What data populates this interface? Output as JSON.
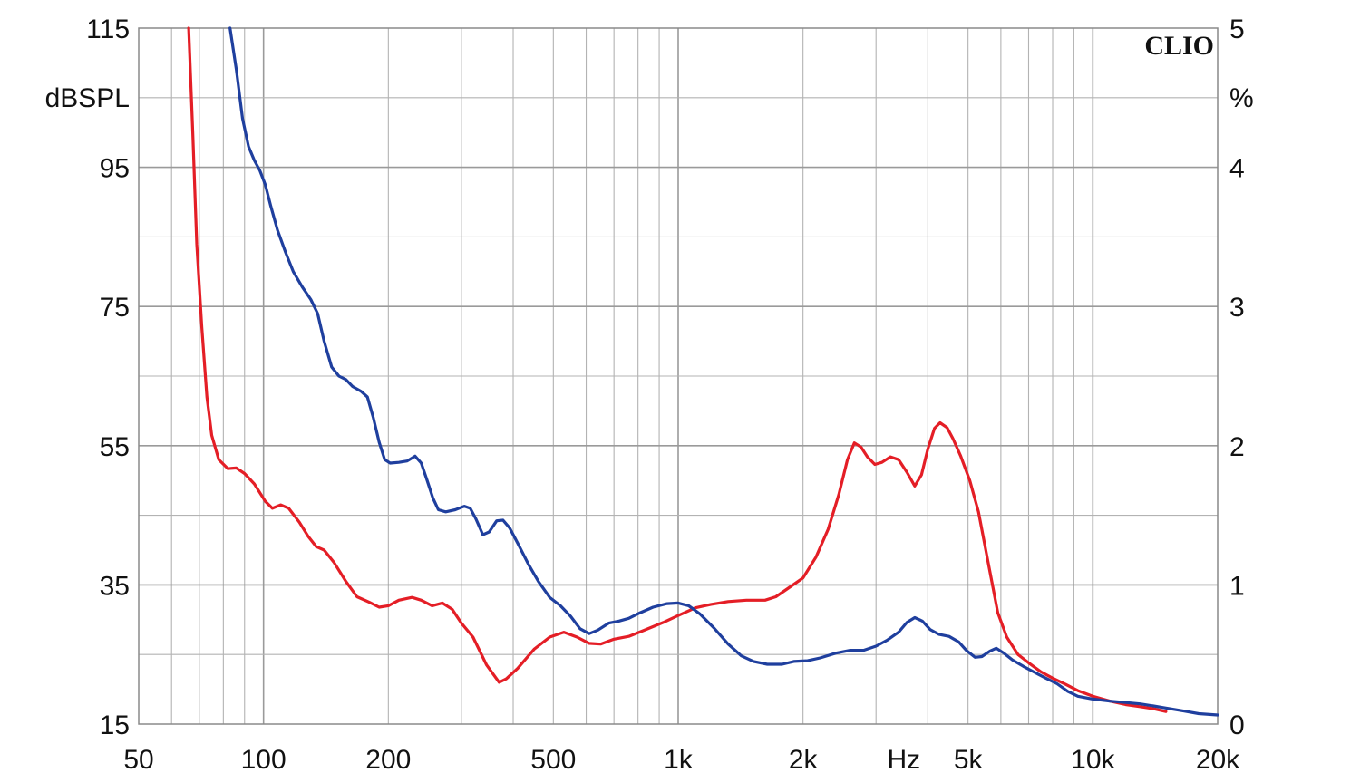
{
  "chart_data": {
    "type": "line",
    "brand": "CLIO",
    "x_scale": "log",
    "xlim": [
      50,
      20000
    ],
    "x_ticks": [
      {
        "value": 50,
        "label": "50"
      },
      {
        "value": 100,
        "label": "100"
      },
      {
        "value": 200,
        "label": "200"
      },
      {
        "value": 500,
        "label": "500"
      },
      {
        "value": 1000,
        "label": "1k"
      },
      {
        "value": 2000,
        "label": "2k"
      },
      {
        "value": 3500,
        "label": "Hz"
      },
      {
        "value": 5000,
        "label": "5k"
      },
      {
        "value": 10000,
        "label": "10k"
      },
      {
        "value": 20000,
        "label": "20k"
      }
    ],
    "x_grid": [
      60,
      70,
      80,
      90,
      100,
      200,
      300,
      400,
      500,
      600,
      700,
      800,
      900,
      1000,
      2000,
      3000,
      4000,
      5000,
      6000,
      7000,
      8000,
      9000,
      10000,
      20000
    ],
    "y_left": {
      "label": "dBSPL",
      "range": [
        15,
        115
      ],
      "ticks": [
        {
          "value": 115,
          "label": "115"
        },
        {
          "value": 95,
          "label": "95"
        },
        {
          "value": 75,
          "label": "75"
        },
        {
          "value": 55,
          "label": "55"
        },
        {
          "value": 35,
          "label": "35"
        },
        {
          "value": 15,
          "label": "15"
        }
      ]
    },
    "y_right": {
      "label": "%",
      "range": [
        0,
        5
      ],
      "ticks": [
        {
          "value": 5,
          "label": "5"
        },
        {
          "value": 4,
          "label": "4"
        },
        {
          "value": 3,
          "label": "3"
        },
        {
          "value": 2,
          "label": "2"
        },
        {
          "value": 1,
          "label": "1"
        },
        {
          "value": 0,
          "label": "0"
        }
      ]
    },
    "grid": true,
    "series": [
      {
        "color": "#e41e26",
        "axis": "left",
        "points": [
          [
            66,
            115
          ],
          [
            67.5,
            100
          ],
          [
            69,
            84
          ],
          [
            71,
            72
          ],
          [
            73,
            62
          ],
          [
            75,
            56.5
          ],
          [
            78,
            53
          ],
          [
            82,
            51.7
          ],
          [
            86,
            51.8
          ],
          [
            90,
            51
          ],
          [
            95,
            49.5
          ],
          [
            101,
            47
          ],
          [
            105,
            46
          ],
          [
            110,
            46.5
          ],
          [
            115,
            46
          ],
          [
            122,
            44
          ],
          [
            128,
            42
          ],
          [
            134,
            40.5
          ],
          [
            140,
            40
          ],
          [
            148,
            38.2
          ],
          [
            158,
            35.5
          ],
          [
            168,
            33.3
          ],
          [
            180,
            32.5
          ],
          [
            190,
            31.8
          ],
          [
            200,
            32
          ],
          [
            212,
            32.8
          ],
          [
            228,
            33.2
          ],
          [
            240,
            32.8
          ],
          [
            255,
            32
          ],
          [
            270,
            32.4
          ],
          [
            285,
            31.5
          ],
          [
            300,
            29.5
          ],
          [
            320,
            27.5
          ],
          [
            345,
            23.5
          ],
          [
            370,
            21
          ],
          [
            385,
            21.5
          ],
          [
            410,
            23
          ],
          [
            450,
            25.8
          ],
          [
            490,
            27.5
          ],
          [
            530,
            28.2
          ],
          [
            570,
            27.5
          ],
          [
            610,
            26.6
          ],
          [
            650,
            26.5
          ],
          [
            700,
            27.2
          ],
          [
            760,
            27.6
          ],
          [
            830,
            28.5
          ],
          [
            920,
            29.6
          ],
          [
            1000,
            30.6
          ],
          [
            1100,
            31.7
          ],
          [
            1200,
            32.2
          ],
          [
            1320,
            32.6
          ],
          [
            1460,
            32.8
          ],
          [
            1620,
            32.8
          ],
          [
            1720,
            33.3
          ],
          [
            1850,
            34.6
          ],
          [
            2000,
            36
          ],
          [
            2150,
            39
          ],
          [
            2300,
            43
          ],
          [
            2440,
            48
          ],
          [
            2560,
            53
          ],
          [
            2660,
            55.4
          ],
          [
            2760,
            54.8
          ],
          [
            2860,
            53.4
          ],
          [
            2980,
            52.3
          ],
          [
            3100,
            52.6
          ],
          [
            3250,
            53.4
          ],
          [
            3400,
            53
          ],
          [
            3560,
            51.2
          ],
          [
            3720,
            49.2
          ],
          [
            3860,
            50.8
          ],
          [
            4000,
            54.5
          ],
          [
            4150,
            57.5
          ],
          [
            4280,
            58.3
          ],
          [
            4450,
            57.6
          ],
          [
            4600,
            56
          ],
          [
            4800,
            53.5
          ],
          [
            5050,
            50
          ],
          [
            5300,
            45.5
          ],
          [
            5600,
            38
          ],
          [
            5900,
            31
          ],
          [
            6200,
            27.5
          ],
          [
            6600,
            25
          ],
          [
            7000,
            23.8
          ],
          [
            7500,
            22.5
          ],
          [
            8000,
            21.6
          ],
          [
            8600,
            20.7
          ],
          [
            9200,
            19.8
          ],
          [
            10000,
            19
          ],
          [
            11000,
            18.3
          ],
          [
            12000,
            17.8
          ],
          [
            13000,
            17.5
          ],
          [
            14000,
            17.2
          ],
          [
            15000,
            16.8
          ]
        ]
      },
      {
        "color": "#1f3f9e",
        "axis": "left",
        "points": [
          [
            83,
            115
          ],
          [
            86,
            109
          ],
          [
            89,
            102
          ],
          [
            92,
            98
          ],
          [
            95,
            96
          ],
          [
            98,
            94.5
          ],
          [
            101,
            92.5
          ],
          [
            104,
            89.5
          ],
          [
            108,
            86
          ],
          [
            113,
            82.8
          ],
          [
            118,
            80
          ],
          [
            124,
            77.8
          ],
          [
            130,
            76
          ],
          [
            135,
            74
          ],
          [
            140,
            70
          ],
          [
            146,
            66.3
          ],
          [
            152,
            65
          ],
          [
            158,
            64.5
          ],
          [
            164,
            63.5
          ],
          [
            172,
            62.8
          ],
          [
            178,
            62
          ],
          [
            184,
            59
          ],
          [
            190,
            55.5
          ],
          [
            196,
            53
          ],
          [
            202,
            52.5
          ],
          [
            212,
            52.6
          ],
          [
            222,
            52.8
          ],
          [
            232,
            53.5
          ],
          [
            240,
            52.5
          ],
          [
            248,
            50
          ],
          [
            256,
            47.5
          ],
          [
            264,
            45.8
          ],
          [
            275,
            45.5
          ],
          [
            290,
            45.8
          ],
          [
            305,
            46.3
          ],
          [
            315,
            46
          ],
          [
            325,
            44.5
          ],
          [
            338,
            42.2
          ],
          [
            350,
            42.6
          ],
          [
            365,
            44.2
          ],
          [
            378,
            44.3
          ],
          [
            392,
            43.2
          ],
          [
            410,
            41
          ],
          [
            435,
            38
          ],
          [
            460,
            35.5
          ],
          [
            490,
            33.2
          ],
          [
            520,
            32
          ],
          [
            550,
            30.5
          ],
          [
            580,
            28.7
          ],
          [
            610,
            28
          ],
          [
            640,
            28.5
          ],
          [
            680,
            29.5
          ],
          [
            720,
            29.8
          ],
          [
            760,
            30.2
          ],
          [
            810,
            31
          ],
          [
            870,
            31.8
          ],
          [
            940,
            32.3
          ],
          [
            1000,
            32.4
          ],
          [
            1060,
            32
          ],
          [
            1130,
            30.8
          ],
          [
            1220,
            28.8
          ],
          [
            1320,
            26.5
          ],
          [
            1420,
            24.8
          ],
          [
            1520,
            24
          ],
          [
            1640,
            23.6
          ],
          [
            1780,
            23.6
          ],
          [
            1900,
            24
          ],
          [
            2050,
            24.1
          ],
          [
            2200,
            24.5
          ],
          [
            2400,
            25.2
          ],
          [
            2600,
            25.6
          ],
          [
            2800,
            25.6
          ],
          [
            3000,
            26.2
          ],
          [
            3200,
            27.1
          ],
          [
            3400,
            28.2
          ],
          [
            3560,
            29.6
          ],
          [
            3720,
            30.3
          ],
          [
            3880,
            29.8
          ],
          [
            4050,
            28.6
          ],
          [
            4250,
            27.9
          ],
          [
            4500,
            27.6
          ],
          [
            4750,
            26.8
          ],
          [
            4950,
            25.6
          ],
          [
            5200,
            24.6
          ],
          [
            5400,
            24.7
          ],
          [
            5650,
            25.5
          ],
          [
            5850,
            25.9
          ],
          [
            6100,
            25.2
          ],
          [
            6400,
            24.2
          ],
          [
            6800,
            23.3
          ],
          [
            7200,
            22.5
          ],
          [
            7700,
            21.6
          ],
          [
            8200,
            20.8
          ],
          [
            8700,
            19.7
          ],
          [
            9200,
            19
          ],
          [
            10000,
            18.6
          ],
          [
            11000,
            18.3
          ],
          [
            12000,
            18.1
          ],
          [
            13000,
            17.9
          ],
          [
            14000,
            17.6
          ],
          [
            15000,
            17.3
          ],
          [
            16500,
            16.9
          ],
          [
            18000,
            16.5
          ],
          [
            20000,
            16.3
          ]
        ]
      }
    ]
  }
}
